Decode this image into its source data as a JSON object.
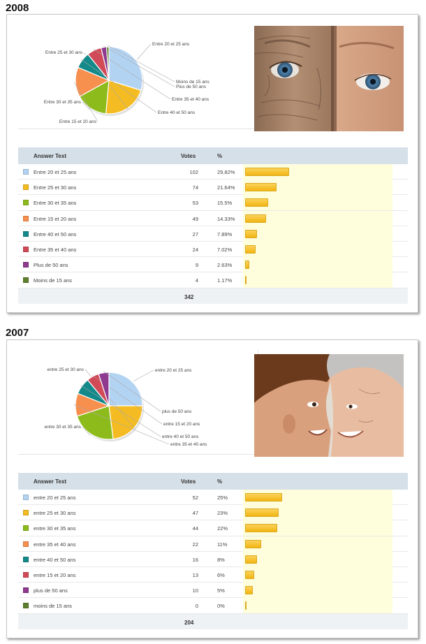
{
  "colors": {
    "light-blue": "#b3d3f3",
    "yellow": "#f4bc22",
    "green": "#8dbb1c",
    "orange": "#f78f4e",
    "teal": "#13898a",
    "red": "#d04a57",
    "purple": "#8d3a8f",
    "dark-green": "#5e7f2c"
  },
  "headers": {
    "answer": "Answer Text",
    "votes": "Votes",
    "percent": "%"
  },
  "polls": [
    {
      "year": "2008",
      "total": "342",
      "photo": "wrinkled-elderly-face-and-child-face",
      "rows": [
        {
          "label": "Entre 20 et 25 ans",
          "pie_label": "Entre 20 et 25 ans",
          "votes": "102",
          "percent": "29.82%",
          "value": 29.82,
          "color": "#b3d3f3"
        },
        {
          "label": "Entre 25 et 30 ans",
          "pie_label": "Entre 25 et 30 ans",
          "votes": "74",
          "percent": "21.64%",
          "value": 21.64,
          "color": "#f4bc22"
        },
        {
          "label": "Entre 30 et 35 ans",
          "pie_label": "Entre 30 et 35 ans",
          "votes": "53",
          "percent": "15.5%",
          "value": 15.5,
          "color": "#8dbb1c"
        },
        {
          "label": "Entre 15 et 20 ans",
          "pie_label": "Entre 15 et 20 ans",
          "votes": "49",
          "percent": "14.33%",
          "value": 14.33,
          "color": "#f78f4e"
        },
        {
          "label": "Entre 40 et 50 ans",
          "pie_label": "Entre 40 et 50 ans",
          "votes": "27",
          "percent": "7.89%",
          "value": 7.89,
          "color": "#13898a"
        },
        {
          "label": "Entre 35 et 40 ans",
          "pie_label": "Entre 35 et 40 ans",
          "votes": "24",
          "percent": "7.02%",
          "value": 7.02,
          "color": "#d04a57"
        },
        {
          "label": "Plus de 50 ans",
          "pie_label": "Plus de 50 ans",
          "votes": "9",
          "percent": "2.63%",
          "value": 2.63,
          "color": "#8d3a8f"
        },
        {
          "label": "Moins de 15 ans",
          "pie_label": "Moins de 15 ans",
          "votes": "4",
          "percent": "1.17%",
          "value": 1.17,
          "color": "#5e7f2c"
        }
      ]
    },
    {
      "year": "2007",
      "total": "204",
      "photo": "boy-and-grandmother-foreheads-touching",
      "rows": [
        {
          "label": "entre 20 et 25 ans",
          "pie_label": "entre 20 et 25 ans",
          "votes": "52",
          "percent": "25%",
          "value": 25,
          "color": "#b3d3f3"
        },
        {
          "label": "entre 25 et 30 ans",
          "pie_label": "entre 25 et 30 ans",
          "votes": "47",
          "percent": "23%",
          "value": 23,
          "color": "#f4bc22"
        },
        {
          "label": "entre 30 et 35 ans",
          "pie_label": "entre 30 et 35 ans",
          "votes": "44",
          "percent": "22%",
          "value": 22,
          "color": "#8dbb1c"
        },
        {
          "label": "entre 35 et 40 ans",
          "pie_label": "entre 35 et 40 ans",
          "votes": "22",
          "percent": "11%",
          "value": 11,
          "color": "#f78f4e"
        },
        {
          "label": "entre 40 et 50 ans",
          "pie_label": "entre 40 et 50 ans",
          "votes": "16",
          "percent": "8%",
          "value": 8,
          "color": "#13898a"
        },
        {
          "label": "entre 15 et 20 ans",
          "pie_label": "entre 15 et 20 ans",
          "votes": "13",
          "percent": "6%",
          "value": 6,
          "color": "#d04a57"
        },
        {
          "label": "plus de 50 ans",
          "pie_label": "plus de 50 ans",
          "votes": "10",
          "percent": "5%",
          "value": 5,
          "color": "#8d3a8f"
        },
        {
          "label": "moins de 15 ans",
          "pie_label": "moins de 15 ans",
          "votes": "0",
          "percent": "0%",
          "value": 0,
          "color": "#5e7f2c"
        }
      ]
    }
  ],
  "chart_data": [
    {
      "type": "pie",
      "title": "2008",
      "categories": [
        "Entre 20 et 25 ans",
        "Entre 25 et 30 ans",
        "Entre 30 et 35 ans",
        "Entre 15 et 20 ans",
        "Entre 40 et 50 ans",
        "Entre 35 et 40 ans",
        "Plus de 50 ans",
        "Moins de 15 ans"
      ],
      "values": [
        29.82,
        21.64,
        15.5,
        14.33,
        7.89,
        7.02,
        2.63,
        1.17
      ],
      "votes": [
        102,
        74,
        53,
        49,
        27,
        24,
        9,
        4
      ],
      "total": 342
    },
    {
      "type": "pie",
      "title": "2007",
      "categories": [
        "entre 20 et 25 ans",
        "entre 25 et 30 ans",
        "entre 30 et 35 ans",
        "entre 35 et 40 ans",
        "entre 40 et 50 ans",
        "entre 15 et 20 ans",
        "plus de 50 ans",
        "moins de 15 ans"
      ],
      "values": [
        25,
        23,
        22,
        11,
        8,
        6,
        5,
        0
      ],
      "votes": [
        52,
        47,
        44,
        22,
        16,
        13,
        10,
        0
      ],
      "total": 204
    }
  ]
}
